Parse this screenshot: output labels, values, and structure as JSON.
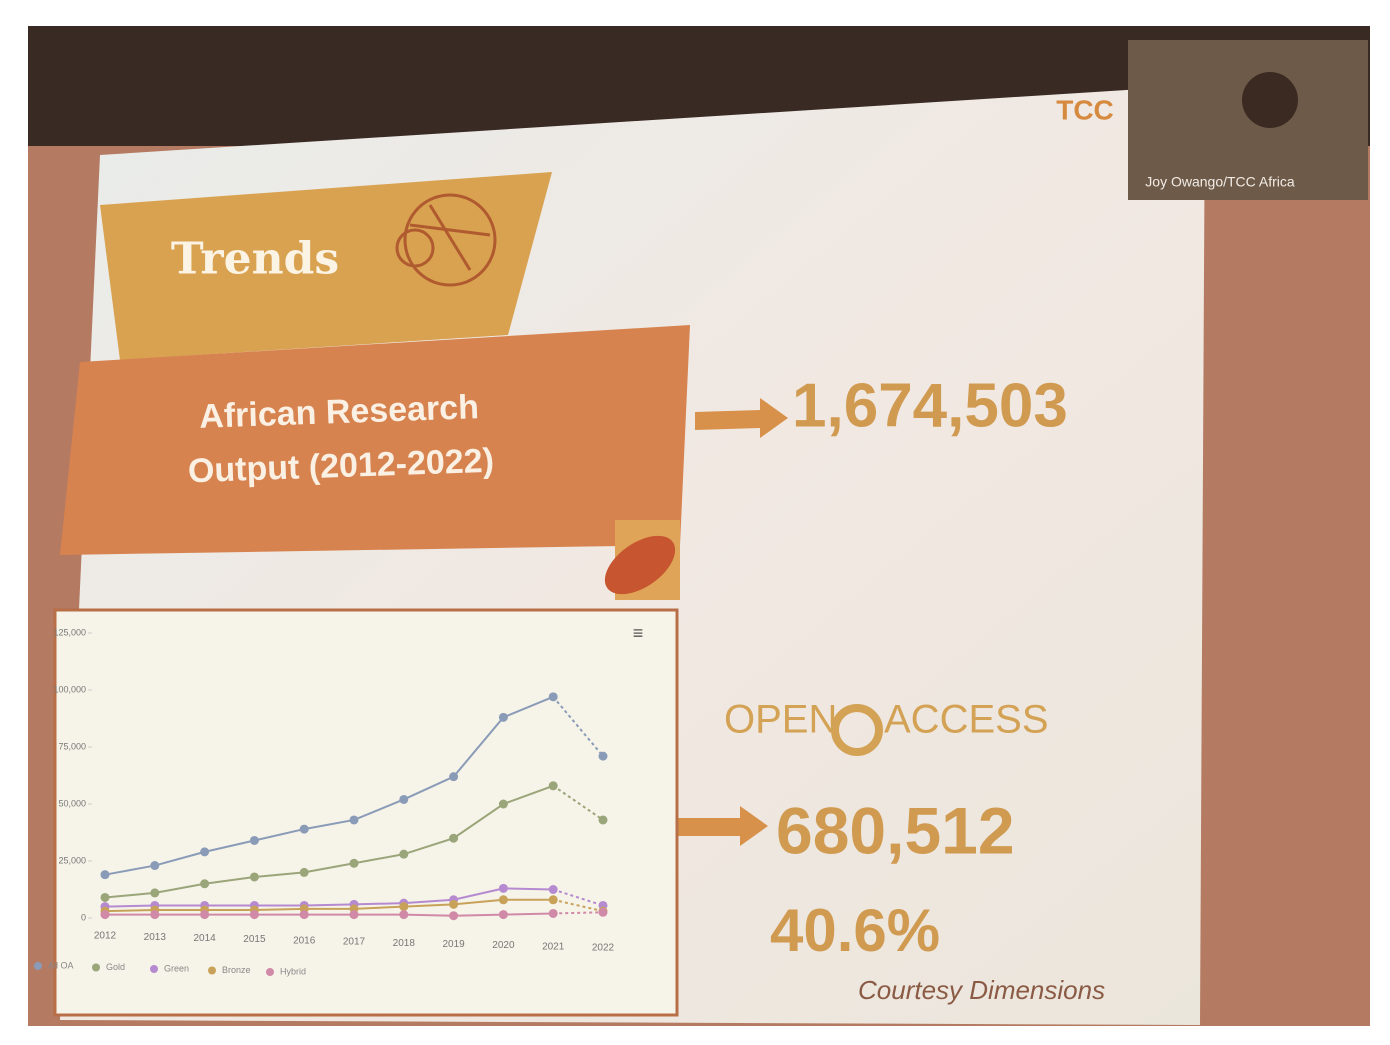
{
  "slide": {
    "heading": "Trends",
    "box_title": "African Research Output (2012-2022)",
    "total": "1,674,503",
    "oa_logo_left": "OPEN",
    "oa_logo_right": "ACCESS",
    "oa_total": "680,512",
    "oa_share": "40.6%",
    "credit": "Courtesy Dimensions",
    "speaker": "Joy Owango/TCC Africa",
    "logo": "TCC"
  },
  "chart_data": {
    "type": "line",
    "categories": [
      "2012",
      "2013",
      "2014",
      "2015",
      "2016",
      "2017",
      "2018",
      "2019",
      "2020",
      "2021",
      "2022"
    ],
    "ylim": [
      0,
      125000
    ],
    "yticks": [
      0,
      {
        "value": 25000,
        "label": "25,000"
      },
      {
        "value": 50000,
        "label": "50,000"
      },
      {
        "value": 75000,
        "label": "75,000"
      },
      {
        "value": 100000,
        "label": "100,000"
      },
      {
        "value": 125000,
        "label": "125,000"
      }
    ],
    "grid": false,
    "last_segment_dashed": true,
    "legend": "bottom-left",
    "series": [
      {
        "name": "All OA",
        "color": "#8a9bb8",
        "values": [
          19000,
          23000,
          29000,
          34000,
          39000,
          43000,
          52000,
          62000,
          88000,
          97000,
          71000
        ]
      },
      {
        "name": "Gold",
        "color": "#9aa57a",
        "values": [
          9000,
          11000,
          15000,
          18000,
          20000,
          24000,
          28000,
          35000,
          50000,
          58000,
          43000
        ]
      },
      {
        "name": "Green",
        "color": "#b58ad0",
        "values": [
          5000,
          5500,
          5500,
          5500,
          5500,
          6000,
          6500,
          8000,
          13000,
          12500,
          5500
        ]
      },
      {
        "name": "Bronze",
        "color": "#c9a25a",
        "values": [
          3000,
          3500,
          3500,
          3500,
          4000,
          4000,
          5000,
          6000,
          8000,
          8000,
          3000
        ]
      },
      {
        "name": "Hybrid",
        "color": "#d08aa8",
        "values": [
          1500,
          1500,
          1500,
          1500,
          1500,
          1500,
          1500,
          1000,
          1500,
          2000,
          2500
        ]
      }
    ]
  }
}
